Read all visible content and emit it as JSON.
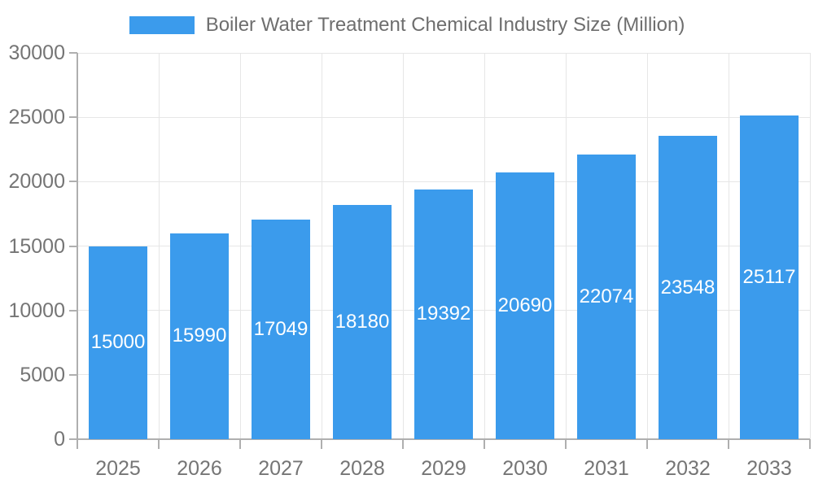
{
  "chart_data": {
    "type": "bar",
    "title": "Boiler Water Treatment Chemical Industry Size (Million)",
    "categories": [
      "2025",
      "2026",
      "2027",
      "2028",
      "2029",
      "2030",
      "2031",
      "2032",
      "2033"
    ],
    "values": [
      15000,
      15990,
      17049,
      18180,
      19392,
      20690,
      22074,
      23548,
      25117
    ],
    "xlabel": "",
    "ylabel": "",
    "ylim": [
      0,
      30000
    ],
    "y_tick_step": 5000,
    "y_tick_labels": [
      "0",
      "5000",
      "10000",
      "15000",
      "20000",
      "25000",
      "30000"
    ],
    "grid": true,
    "legend_position": "top",
    "bar_value_labels_visible": true
  },
  "colors": {
    "bar": "#3B9BEC",
    "bar_value_text": "#FFFFFF",
    "axis_line": "#AFAFAF",
    "gridline": "#E6E6E6",
    "tick_text": "#757575",
    "title_text": "#6E6E6E",
    "background": "#FFFFFF"
  }
}
